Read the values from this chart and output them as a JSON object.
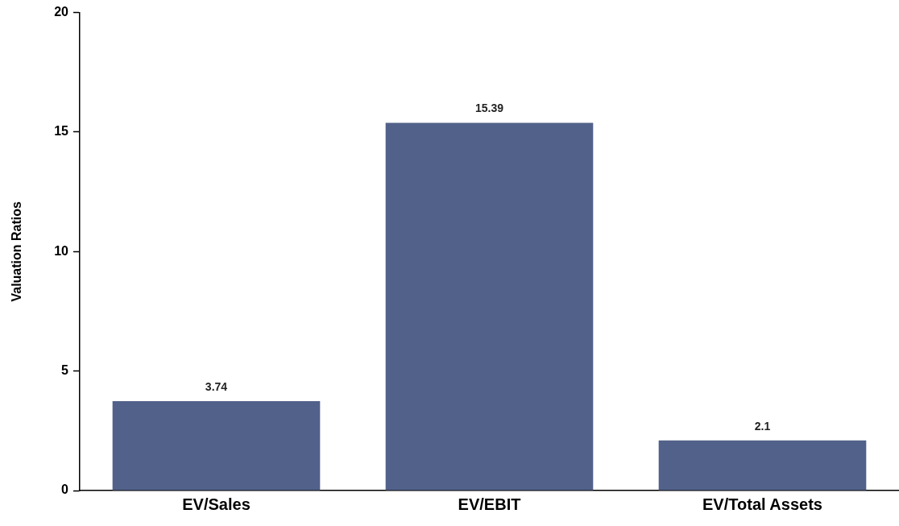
{
  "chart_data": {
    "type": "bar",
    "ylabel": "Valuation Ratios",
    "categories": [
      "EV/Sales",
      "EV/EBIT",
      "EV/Total Assets"
    ],
    "values": [
      3.74,
      15.39,
      2.1
    ],
    "color": "#52618a",
    "ylim": [
      0,
      20
    ],
    "yticks": [
      0,
      5,
      10,
      15,
      20
    ],
    "grid": false,
    "data_labels": true
  }
}
